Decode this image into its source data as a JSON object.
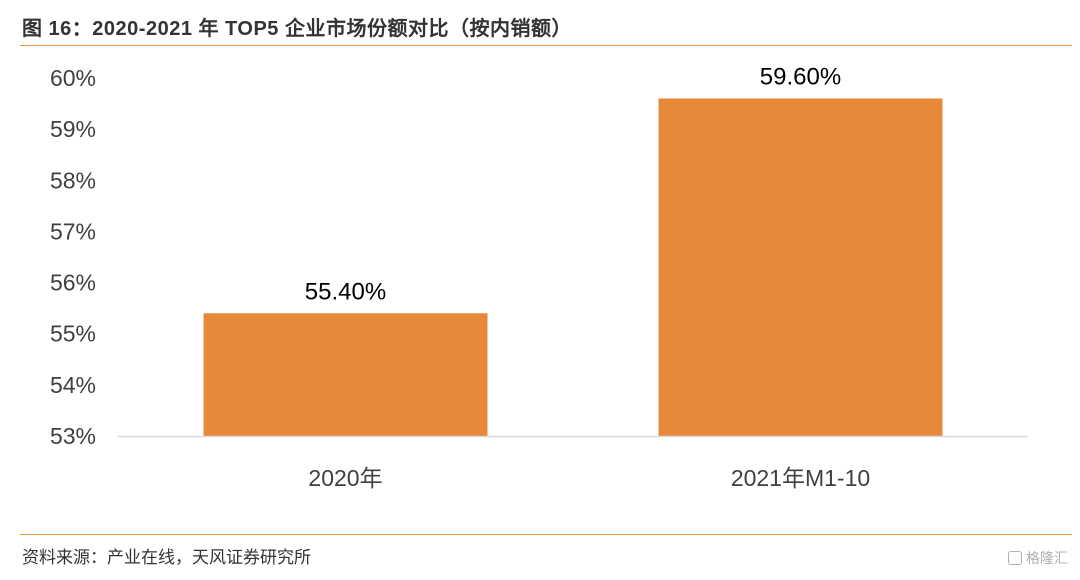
{
  "header": {
    "title": "图 16：2020-2021 年 TOP5 企业市场份额对比（按内销额）"
  },
  "footer": {
    "source": "资料来源：产业在线，天风证券研究所",
    "watermark": "格隆汇"
  },
  "colors": {
    "bar": "#e8893a",
    "rule": "#e8954a",
    "axis": "#d9d9d9",
    "text": "#333333"
  },
  "chart_data": {
    "type": "bar",
    "categories": [
      "2020年",
      "2021年M1-10"
    ],
    "values": [
      55.4,
      59.6
    ],
    "data_labels": [
      "55.40%",
      "59.60%"
    ],
    "y_ticks": [
      "53%",
      "54%",
      "55%",
      "56%",
      "57%",
      "58%",
      "59%",
      "60%"
    ],
    "ylim": [
      53,
      60
    ],
    "grid": false,
    "legend": "none"
  }
}
